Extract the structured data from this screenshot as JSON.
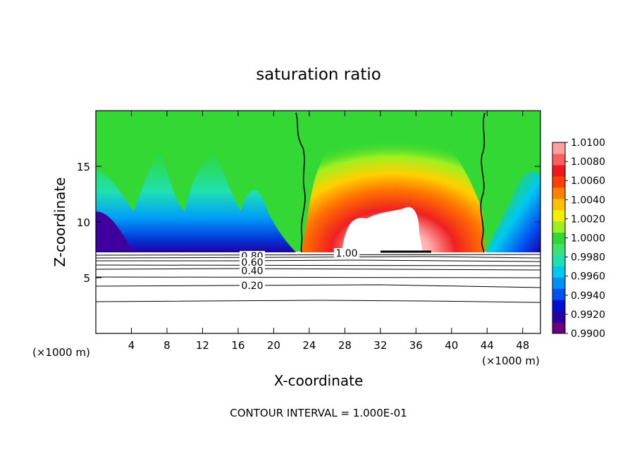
{
  "chart_data": {
    "type": "heatmap",
    "title": "saturation ratio",
    "xlabel": "X-coordinate",
    "ylabel": "Z-coordinate",
    "x_unit": "(×1000 m)",
    "x_unit_right": "(×1000 m)",
    "footer": "CONTOUR INTERVAL = 1.000E-01",
    "xlim": [
      0,
      50
    ],
    "ylim": [
      0,
      20
    ],
    "x_ticks": [
      "4",
      "8",
      "12",
      "16",
      "20",
      "24",
      "28",
      "32",
      "36",
      "40",
      "44",
      "48"
    ],
    "y_ticks": [
      "5",
      "10",
      "15"
    ],
    "x_tick_values": [
      4,
      8,
      12,
      16,
      20,
      24,
      28,
      32,
      36,
      40,
      44,
      48
    ],
    "y_tick_values": [
      5,
      10,
      15
    ],
    "colorbar": {
      "labels": [
        "1.0100",
        "1.0080",
        "1.0060",
        "1.0040",
        "1.0020",
        "1.0000",
        "0.9980",
        "0.9960",
        "0.9940",
        "0.9920",
        "0.9900"
      ],
      "min": 0.99,
      "max": 1.01,
      "colors": [
        "#6a0080",
        "#2a00a0",
        "#0010d0",
        "#0050f0",
        "#0090f8",
        "#00c8f0",
        "#20e0b0",
        "#40e070",
        "#30d830",
        "#a0f020",
        "#f0f000",
        "#ffc000",
        "#ff8000",
        "#ff4000",
        "#f01818",
        "#f86060",
        "#ffa0a0"
      ]
    },
    "contour_labels": [
      {
        "text": "0.80",
        "value": 0.8
      },
      {
        "text": "0.60",
        "value": 0.6
      },
      {
        "text": "0.40",
        "value": 0.4
      },
      {
        "text": "0.20",
        "value": 0.2
      },
      {
        "text": "1.00",
        "value": 1.0
      }
    ],
    "cloud_base_z": 7.2,
    "supersaturation_region_x": [
      23,
      43.5
    ]
  }
}
